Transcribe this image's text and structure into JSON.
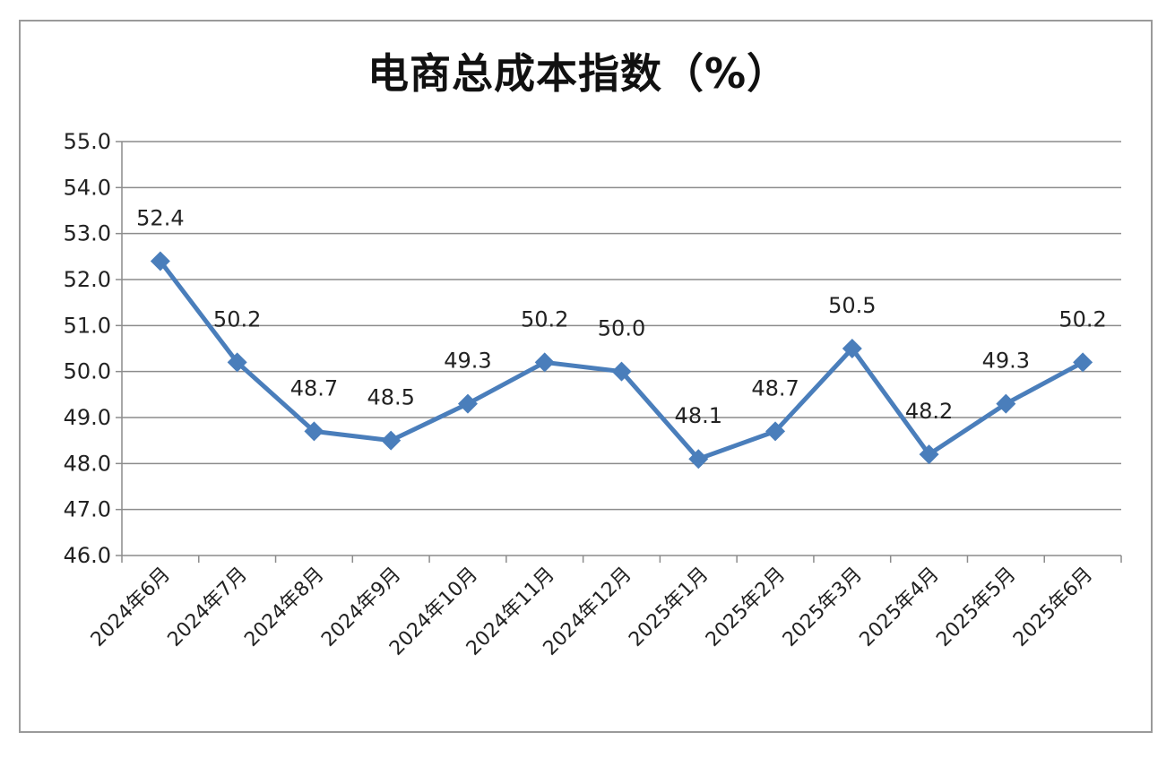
{
  "chart_data": {
    "type": "line",
    "title": "电商总成本指数（%）",
    "xlabel": "",
    "ylabel": "",
    "categories": [
      "2024年6月",
      "2024年7月",
      "2024年8月",
      "2024年9月",
      "2024年10月",
      "2024年11月",
      "2024年12月",
      "2025年1月",
      "2025年2月",
      "2025年3月",
      "2025年4月",
      "2025年5月",
      "2025年6月"
    ],
    "series": [
      {
        "values": [
          52.4,
          50.2,
          48.7,
          48.5,
          49.3,
          50.2,
          50.0,
          48.1,
          48.7,
          50.5,
          48.2,
          49.3,
          50.2
        ],
        "data_labels": [
          "52.4",
          "50.2",
          "48.7",
          "48.5",
          "49.3",
          "50.2",
          "50.0",
          "48.1",
          "48.7",
          "50.5",
          "48.2",
          "49.3",
          "50.2"
        ],
        "color": "#4a7ebb"
      }
    ],
    "ylim": [
      46.0,
      55.0
    ],
    "yticks": [
      "46.0",
      "47.0",
      "48.0",
      "49.0",
      "50.0",
      "51.0",
      "52.0",
      "53.0",
      "54.0",
      "55.0"
    ],
    "grid": true,
    "legend": "none",
    "marker": "diamond"
  }
}
